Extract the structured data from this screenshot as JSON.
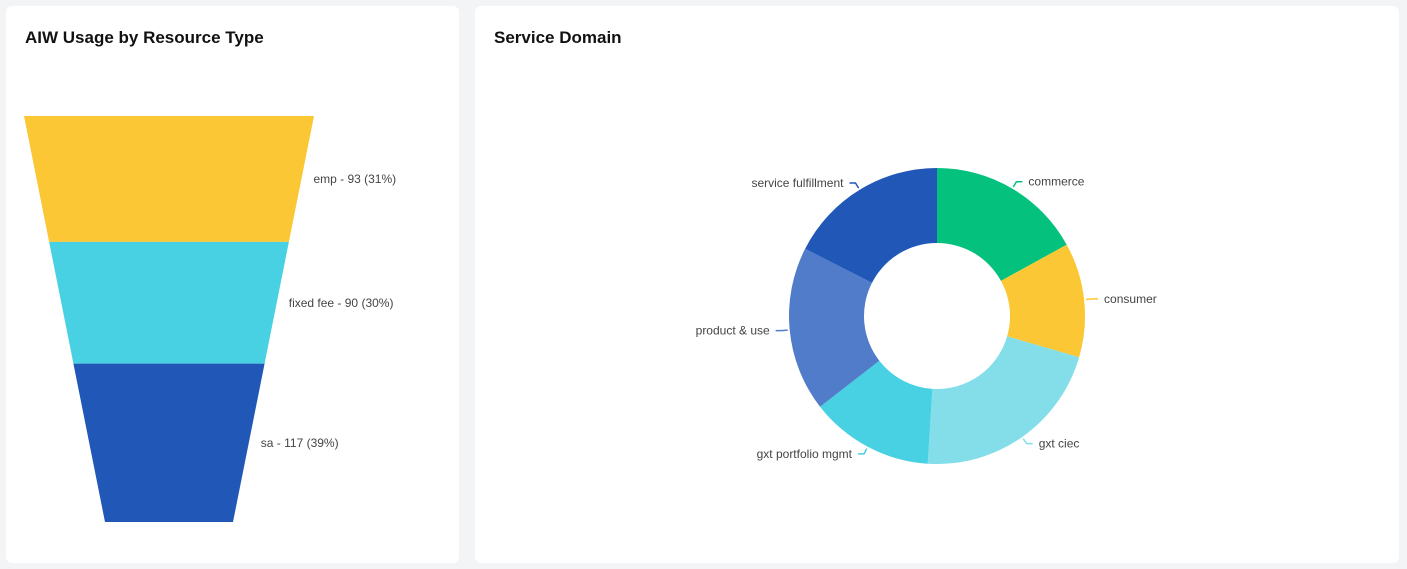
{
  "charts": {
    "funnel_title": "AIW Usage by Resource Type",
    "donut_title": "Service Domain"
  },
  "chart_data": [
    {
      "type": "funnel",
      "title": "AIW Usage by Resource Type",
      "stages": [
        {
          "name": "emp",
          "value": 93,
          "percent": 31,
          "label": "emp - 93 (31%)",
          "color": "#fbc735"
        },
        {
          "name": "fixed fee",
          "value": 90,
          "percent": 30,
          "label": "fixed fee - 90 (30%)",
          "color": "#48d1e2"
        },
        {
          "name": "sa",
          "value": 117,
          "percent": 39,
          "label": "sa - 117 (39%)",
          "color": "#2157b7"
        }
      ]
    },
    {
      "type": "pie",
      "donut": true,
      "title": "Service Domain",
      "slices": [
        {
          "name": "commerce",
          "share": 0.17,
          "color": "#05c17e"
        },
        {
          "name": "consumer",
          "share": 0.125,
          "color": "#fbc735"
        },
        {
          "name": "gxt ciec",
          "share": 0.215,
          "color": "#83deea"
        },
        {
          "name": "gxt portfolio mgmt",
          "share": 0.135,
          "color": "#48d1e2"
        },
        {
          "name": "product & use",
          "share": 0.18,
          "color": "#517cc9"
        },
        {
          "name": "service fulfillment",
          "share": 0.175,
          "color": "#2157b7"
        }
      ]
    }
  ]
}
